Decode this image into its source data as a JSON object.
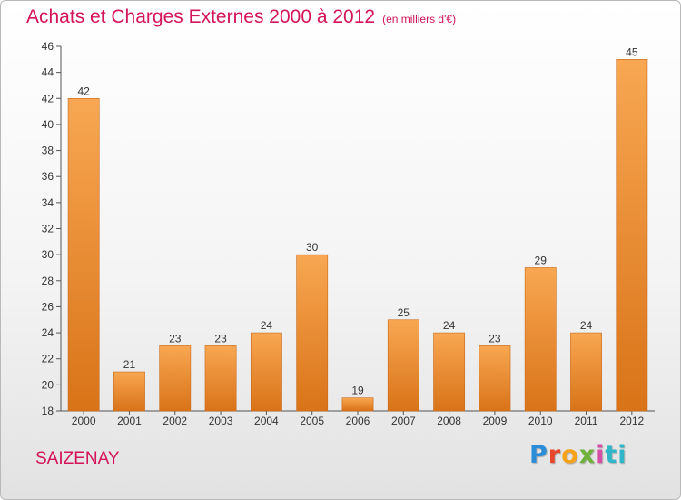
{
  "chart_data": {
    "type": "bar",
    "title": "Achats et Charges Externes 2000 à 2012",
    "subtitle": "(en milliers d'€)",
    "categories": [
      "2000",
      "2001",
      "2002",
      "2003",
      "2004",
      "2005",
      "2006",
      "2007",
      "2008",
      "2009",
      "2010",
      "2011",
      "2012"
    ],
    "values": [
      42,
      21,
      23,
      23,
      24,
      30,
      19,
      25,
      24,
      23,
      29,
      24,
      45
    ],
    "ylim": [
      18,
      46
    ],
    "yticks": [
      18,
      20,
      22,
      24,
      26,
      28,
      30,
      32,
      34,
      36,
      38,
      40,
      42,
      44,
      46
    ],
    "grid": false,
    "bar_color": "#f0963a",
    "bar_color_dark": "#d97318"
  },
  "footer": {
    "town": "SAIZENAY",
    "logo": [
      "P",
      "r",
      "o",
      "x",
      "i",
      "ti"
    ]
  }
}
